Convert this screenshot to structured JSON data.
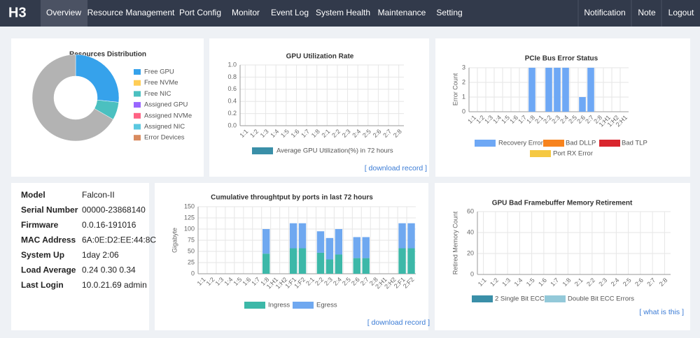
{
  "logo": "H3",
  "nav": {
    "left": [
      "Overview",
      "Resource Management",
      "Port Config",
      "Monitor",
      "Event Log",
      "System Health",
      "Maintenance",
      "Setting"
    ],
    "right": [
      "Notification",
      "Note",
      "Logout"
    ]
  },
  "info": {
    "rows": [
      [
        "Model",
        "Falcon-II"
      ],
      [
        "Serial Number",
        "00000-23868140"
      ],
      [
        "Firmware",
        "0.0.16-191016"
      ],
      [
        "MAC Address",
        "6A:0E:D2:EE:44:8C"
      ],
      [
        "System Up",
        "1day 2:06"
      ],
      [
        "Load Average",
        "0.24 0.30 0.34"
      ],
      [
        "Last Login",
        "10.0.21.69 admin"
      ]
    ]
  },
  "chart_data": [
    {
      "type": "donut",
      "title": "Resources Distribution",
      "categories": [
        "Free GPU",
        "Free NVMe",
        "Free NIC",
        "Assigned GPU",
        "Assigned NVMe",
        "Assigned NIC",
        "Error Devices",
        null
      ],
      "values": [
        8,
        0,
        2,
        0,
        0,
        0,
        0,
        20
      ],
      "colors": [
        "#36a2eb",
        "#ffcd56",
        "#4bc0c0",
        "#9966ff",
        "#ff6384",
        "#5bc8e0",
        "#d98b5f",
        "#b3b3b3"
      ]
    },
    {
      "type": "line",
      "title": "GPU Utilization Rate",
      "categories": [
        "1:1",
        "1:2",
        "1:3",
        "1:4",
        "1:5",
        "1:6",
        "1:7",
        "1:8",
        "2:1",
        "2:2",
        "2:3",
        "2:4",
        "2:5",
        "2:6",
        "2:7",
        "2:8"
      ],
      "series": [
        {
          "name": "Average GPU Utilization(%) in 72 hours",
          "color": "#3a8fa8",
          "values": [
            null,
            null,
            null,
            null,
            null,
            null,
            null,
            null,
            null,
            null,
            null,
            null,
            null,
            null,
            null,
            null
          ]
        }
      ],
      "ylim": [
        0,
        1
      ],
      "yticks": [
        {
          "value": 0,
          "label": "0.0"
        },
        0.2,
        0.4,
        0.6,
        0.8,
        {
          "value": 1,
          "label": "1.0"
        }
      ],
      "grid": true,
      "link": "[ download record ]"
    },
    {
      "type": "bar",
      "stacked": true,
      "title": "PCIe Bus Error Status",
      "ylabel": "Error Count",
      "categories": [
        "1:1",
        "1:2",
        "1:3",
        "1:4",
        "1:5",
        "1:6",
        "1:7",
        "1:8",
        "2:1",
        "2:2",
        "2:3",
        "2:4",
        "2:5",
        "2:6",
        "2:7",
        "2:8",
        "1:H1",
        "1:H2",
        "2:H1"
      ],
      "series": [
        {
          "name": "Recovery Error",
          "color": "#6ea8f5",
          "values": [
            0,
            0,
            0,
            0,
            0,
            0,
            0,
            3,
            0,
            3,
            3,
            3,
            0,
            1,
            3,
            0,
            0,
            0,
            0
          ]
        },
        {
          "name": "Bad DLLP",
          "color": "#f7831e",
          "values": [
            0,
            0,
            0,
            0,
            0,
            0,
            0,
            0,
            0,
            0,
            0,
            0,
            0,
            0,
            0,
            0,
            0,
            0,
            0
          ]
        },
        {
          "name": "Bad TLP",
          "color": "#d9262e",
          "values": [
            0,
            0,
            0,
            0,
            0,
            0,
            0,
            0,
            0,
            0,
            0,
            0,
            0,
            0,
            0,
            0,
            0,
            0,
            0
          ]
        },
        {
          "name": "Port RX Error",
          "color": "#f5c842",
          "values": [
            0,
            0,
            0,
            0,
            0,
            0,
            0,
            0,
            0,
            0,
            0,
            0,
            0,
            0,
            0,
            0,
            0,
            0,
            0
          ]
        }
      ],
      "ylim": [
        0,
        3
      ],
      "yticks": [
        0,
        1,
        2,
        3
      ],
      "grid": true
    },
    {
      "type": "bar",
      "stacked": true,
      "title": "Cumulative throughtput by ports in last 72 hours",
      "ylabel": "Gigabyte",
      "categories": [
        "1:1",
        "1:2",
        "1:3",
        "1:4",
        "1:5",
        "1:6",
        "1:7",
        "1:8",
        "1:H1",
        "1:H2",
        "1:F1",
        "1:F2",
        "2:1",
        "2:2",
        "2:3",
        "2:4",
        "2:5",
        "2:6",
        "2:7",
        "2:8",
        "2:H1",
        "2:H2",
        "2:F1",
        "2:F2"
      ],
      "series": [
        {
          "name": "Ingress",
          "color": "#3cb8a8",
          "values": [
            0,
            0,
            0,
            0,
            0,
            0,
            0,
            45,
            0,
            0,
            57,
            57,
            0,
            47,
            32,
            43,
            0,
            35,
            35,
            0,
            0,
            0,
            57,
            57
          ]
        },
        {
          "name": "Egress",
          "color": "#6fa8f0",
          "values": [
            0,
            0,
            0,
            0,
            0,
            0,
            0,
            55,
            0,
            0,
            56,
            56,
            0,
            48,
            48,
            57,
            0,
            47,
            47,
            0,
            0,
            0,
            56,
            56
          ]
        }
      ],
      "ylim": [
        0,
        150
      ],
      "yticks": [
        0,
        25,
        50,
        75,
        100,
        125,
        150
      ],
      "grid": true,
      "link": "[ download record ]"
    },
    {
      "type": "line",
      "title": "GPU Bad Framebuffer Memory Retirement",
      "ylabel": "Retired Memory Count",
      "categories": [
        "1:1",
        "1:2",
        "1:3",
        "1:4",
        "1:5",
        "1:6",
        "1:7",
        "1:8",
        "2:1",
        "2:2",
        "2:3",
        "2:4",
        "2:5",
        "2:6",
        "2:7",
        "2:8"
      ],
      "series": [
        {
          "name": "2 Single Bit ECC Errors",
          "color": "#3a8fa8",
          "values": [
            null,
            null,
            null,
            null,
            null,
            null,
            null,
            null,
            null,
            null,
            null,
            null,
            null,
            null,
            null,
            null
          ]
        },
        {
          "name": "Double Bit ECC Errors",
          "color": "#93c9d9",
          "values": [
            null,
            null,
            null,
            null,
            null,
            null,
            null,
            null,
            null,
            null,
            null,
            null,
            null,
            null,
            null,
            null
          ]
        }
      ],
      "ylim": [
        0,
        60
      ],
      "yticks": [
        0,
        20,
        40,
        60
      ],
      "grid": true,
      "link": "[ what is this ]"
    }
  ]
}
